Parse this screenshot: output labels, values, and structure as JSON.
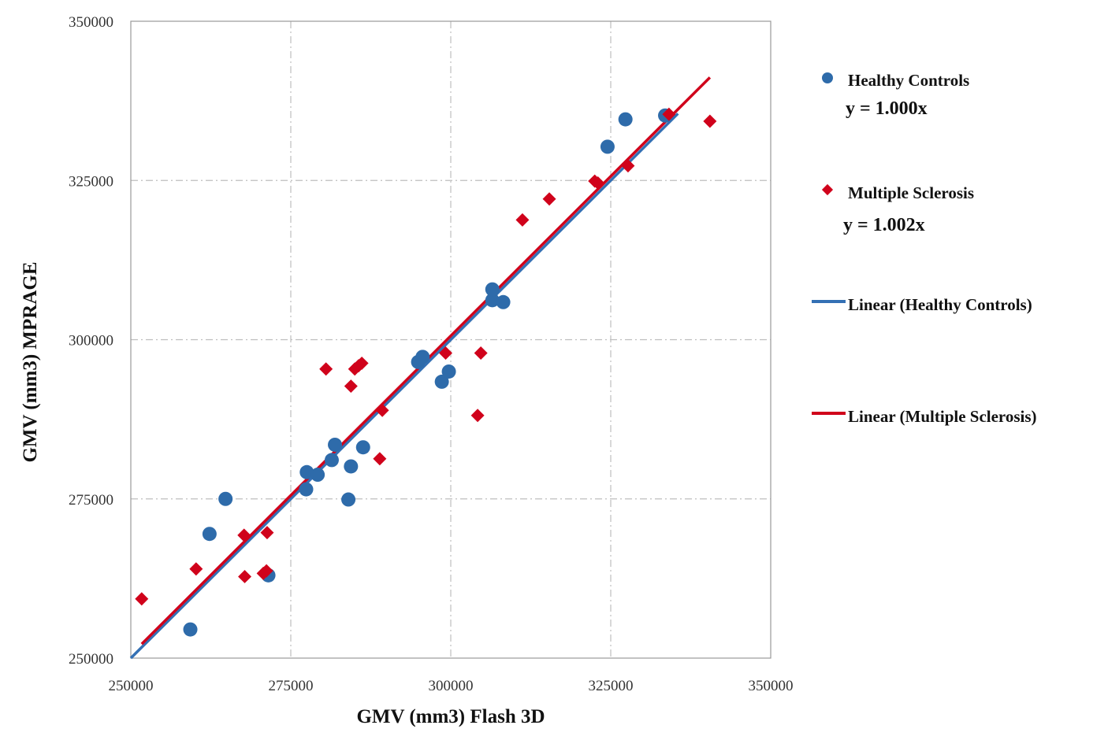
{
  "chart_data": {
    "type": "scatter",
    "xlabel": "GMV (mm3) Flash 3D",
    "ylabel": "GMV (mm3) MPRAGE",
    "xlim": [
      250000,
      350000
    ],
    "ylim": [
      250000,
      350000
    ],
    "xticks": [
      "250000",
      "275000",
      "300000",
      "325000",
      "350000"
    ],
    "yticks": [
      "250000",
      "275000",
      "300000",
      "325000",
      "350000"
    ],
    "grid": true,
    "legend_position": "right",
    "series": [
      {
        "name": "Healthy Controls",
        "equation": "y = 1.000x",
        "color": "#2E6BAA",
        "marker": "circle",
        "points": [
          [
            259300,
            254500
          ],
          [
            262300,
            269500
          ],
          [
            264800,
            275000
          ],
          [
            271500,
            263000
          ],
          [
            277400,
            276500
          ],
          [
            277500,
            279200
          ],
          [
            279200,
            278800
          ],
          [
            281400,
            281100
          ],
          [
            281900,
            283500
          ],
          [
            284000,
            274900
          ],
          [
            284400,
            280100
          ],
          [
            286300,
            283100
          ],
          [
            294900,
            296500
          ],
          [
            295600,
            297300
          ],
          [
            298600,
            293400
          ],
          [
            299700,
            295000
          ],
          [
            306500,
            306200
          ],
          [
            306500,
            307900
          ],
          [
            308200,
            305900
          ],
          [
            324500,
            330300
          ],
          [
            327300,
            334600
          ],
          [
            333500,
            335200
          ]
        ]
      },
      {
        "name": "Multiple Sclerosis",
        "equation": "y = 1.002x",
        "color": "#D0021B",
        "marker": "diamond",
        "points": [
          [
            251700,
            259300
          ],
          [
            260200,
            264000
          ],
          [
            267700,
            269300
          ],
          [
            267800,
            262800
          ],
          [
            270700,
            263300
          ],
          [
            271200,
            263700
          ],
          [
            271300,
            269700
          ],
          [
            280500,
            295400
          ],
          [
            284400,
            292700
          ],
          [
            285000,
            295400
          ],
          [
            285600,
            295900
          ],
          [
            286100,
            296300
          ],
          [
            288900,
            281300
          ],
          [
            289300,
            288900
          ],
          [
            299200,
            297900
          ],
          [
            304200,
            288100
          ],
          [
            304700,
            297900
          ],
          [
            311200,
            318800
          ],
          [
            315400,
            322100
          ],
          [
            322500,
            324900
          ],
          [
            323000,
            324600
          ],
          [
            327700,
            327300
          ],
          [
            334100,
            335400
          ],
          [
            340500,
            334300
          ]
        ]
      }
    ],
    "trendlines": [
      {
        "name": "Linear (Healthy Controls)",
        "color": "#3470B4",
        "x": [
          250000,
          335500
        ],
        "slope": 1.0
      },
      {
        "name": "Linear (Multiple Sclerosis)",
        "color": "#D0021B",
        "x": [
          251700,
          340500
        ],
        "slope": 1.002
      }
    ]
  }
}
